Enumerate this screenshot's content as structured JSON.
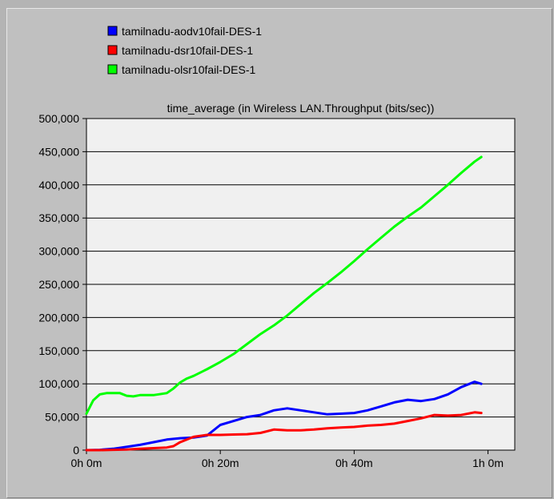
{
  "chart_data": {
    "type": "line",
    "title": "time_average (in Wireless LAN.Throughput (bits/sec))",
    "xlim": [
      0,
      64
    ],
    "ylim": [
      0,
      500000
    ],
    "x_ticks": [
      {
        "value": 0,
        "label": "0h 0m"
      },
      {
        "value": 20,
        "label": "0h 20m"
      },
      {
        "value": 40,
        "label": "0h 40m"
      },
      {
        "value": 60,
        "label": "1h 0m"
      }
    ],
    "y_ticks": [
      {
        "value": 0,
        "label": "0"
      },
      {
        "value": 50000,
        "label": "50,000"
      },
      {
        "value": 100000,
        "label": "100,000"
      },
      {
        "value": 150000,
        "label": "150,000"
      },
      {
        "value": 200000,
        "label": "200,000"
      },
      {
        "value": 250000,
        "label": "250,000"
      },
      {
        "value": 300000,
        "label": "300,000"
      },
      {
        "value": 350000,
        "label": "350,000"
      },
      {
        "value": 400000,
        "label": "400,000"
      },
      {
        "value": 450000,
        "label": "450,000"
      },
      {
        "value": 500000,
        "label": "500,000"
      }
    ],
    "grid": "horizontal",
    "legend": "top-left",
    "series": [
      {
        "name": "tamilnadu-aodv10fail-DES-1",
        "color": "#0000ff",
        "x": [
          0,
          2,
          4,
          6,
          8,
          10,
          12,
          14,
          16,
          18,
          20,
          22,
          24,
          26,
          28,
          30,
          32,
          34,
          36,
          38,
          40,
          42,
          44,
          46,
          48,
          50,
          52,
          54,
          56,
          58,
          59
        ],
        "y": [
          0,
          500,
          2000,
          5000,
          8000,
          12000,
          16000,
          18000,
          19000,
          22000,
          38000,
          44000,
          50000,
          53000,
          60000,
          63000,
          60000,
          57000,
          54000,
          55000,
          56000,
          60000,
          66000,
          72000,
          76000,
          74000,
          77000,
          84000,
          95000,
          103000,
          100000
        ]
      },
      {
        "name": "tamilnadu-dsr10fail-DES-1",
        "color": "#ff0000",
        "x": [
          0,
          2,
          4,
          6,
          8,
          10,
          12,
          13,
          14,
          16,
          18,
          20,
          22,
          24,
          26,
          28,
          30,
          32,
          34,
          36,
          38,
          40,
          42,
          44,
          46,
          48,
          50,
          52,
          54,
          56,
          58,
          59
        ],
        "y": [
          0,
          0,
          500,
          1000,
          2000,
          3000,
          4000,
          6000,
          12000,
          20000,
          23000,
          23000,
          23500,
          24000,
          26000,
          31000,
          30000,
          30000,
          31000,
          33000,
          34000,
          35000,
          37000,
          38000,
          40000,
          44000,
          48000,
          53000,
          52000,
          53000,
          57000,
          56000
        ]
      },
      {
        "name": "tamilnadu-olsr10fail-DES-1",
        "color": "#00ff00",
        "x": [
          0,
          1,
          2,
          3,
          4,
          5,
          6,
          7,
          8,
          10,
          12,
          13,
          14,
          15,
          16,
          18,
          20,
          22,
          24,
          26,
          28,
          30,
          32,
          34,
          36,
          38,
          40,
          42,
          44,
          46,
          48,
          50,
          52,
          54,
          56,
          58,
          59
        ],
        "y": [
          55000,
          75000,
          84000,
          86000,
          86000,
          86000,
          82000,
          81000,
          83000,
          83000,
          86000,
          93000,
          102000,
          108000,
          112000,
          122000,
          133000,
          145000,
          160000,
          175000,
          188000,
          203000,
          220000,
          237000,
          252000,
          268000,
          285000,
          303000,
          320000,
          337000,
          352000,
          366000,
          383000,
          400000,
          418000,
          435000,
          442000
        ]
      }
    ]
  }
}
